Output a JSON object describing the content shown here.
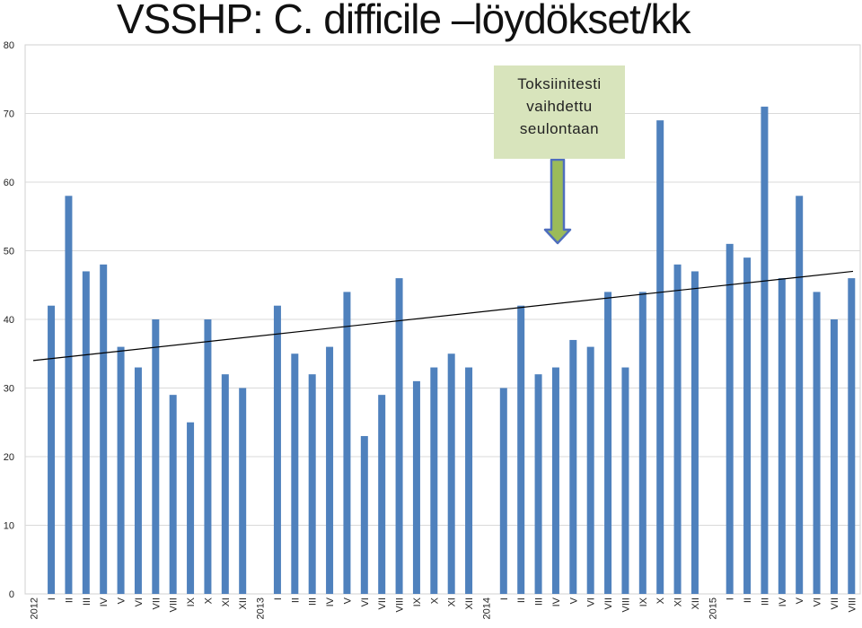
{
  "chart_data": {
    "type": "bar",
    "title": "VSSHP: C. difficile –löydökset/kk",
    "annotation": "Toksiinitesti vaihdettu seulontaan",
    "ylim": [
      0,
      80
    ],
    "yticks": [
      0,
      10,
      20,
      30,
      40,
      50,
      60,
      70,
      80
    ],
    "grid": true,
    "legend": "none",
    "trendline": {
      "start": 34,
      "end": 47
    },
    "colors": {
      "bar": "#4f81bd",
      "trend": "#000000",
      "arrow_fill": "#9bbb59",
      "arrow_stroke": "#4f6ebd",
      "annotation_bg": "#d8e4bc"
    },
    "categories": [
      "2012",
      "I",
      "II",
      "III",
      "IV",
      "V",
      "VI",
      "VII",
      "VIII",
      "IX",
      "X",
      "XI",
      "XII",
      "2013",
      "I",
      "II",
      "III",
      "IV",
      "V",
      "VI",
      "VII",
      "VIII",
      "IX",
      "X",
      "XI",
      "XII",
      "2014",
      "I",
      "II",
      "III",
      "IV",
      "V",
      "VI",
      "VII",
      "VIII",
      "IX",
      "X",
      "XI",
      "XII",
      "2015",
      "I",
      "II",
      "III",
      "IV",
      "V",
      "VI",
      "VII",
      "VIII"
    ],
    "values": [
      null,
      42,
      58,
      47,
      48,
      36,
      33,
      40,
      29,
      25,
      40,
      32,
      30,
      null,
      42,
      35,
      32,
      36,
      44,
      23,
      29,
      46,
      31,
      33,
      35,
      33,
      null,
      30,
      42,
      32,
      33,
      37,
      36,
      44,
      33,
      44,
      69,
      48,
      47,
      null,
      51,
      49,
      71,
      46,
      58,
      44,
      40,
      46
    ]
  }
}
